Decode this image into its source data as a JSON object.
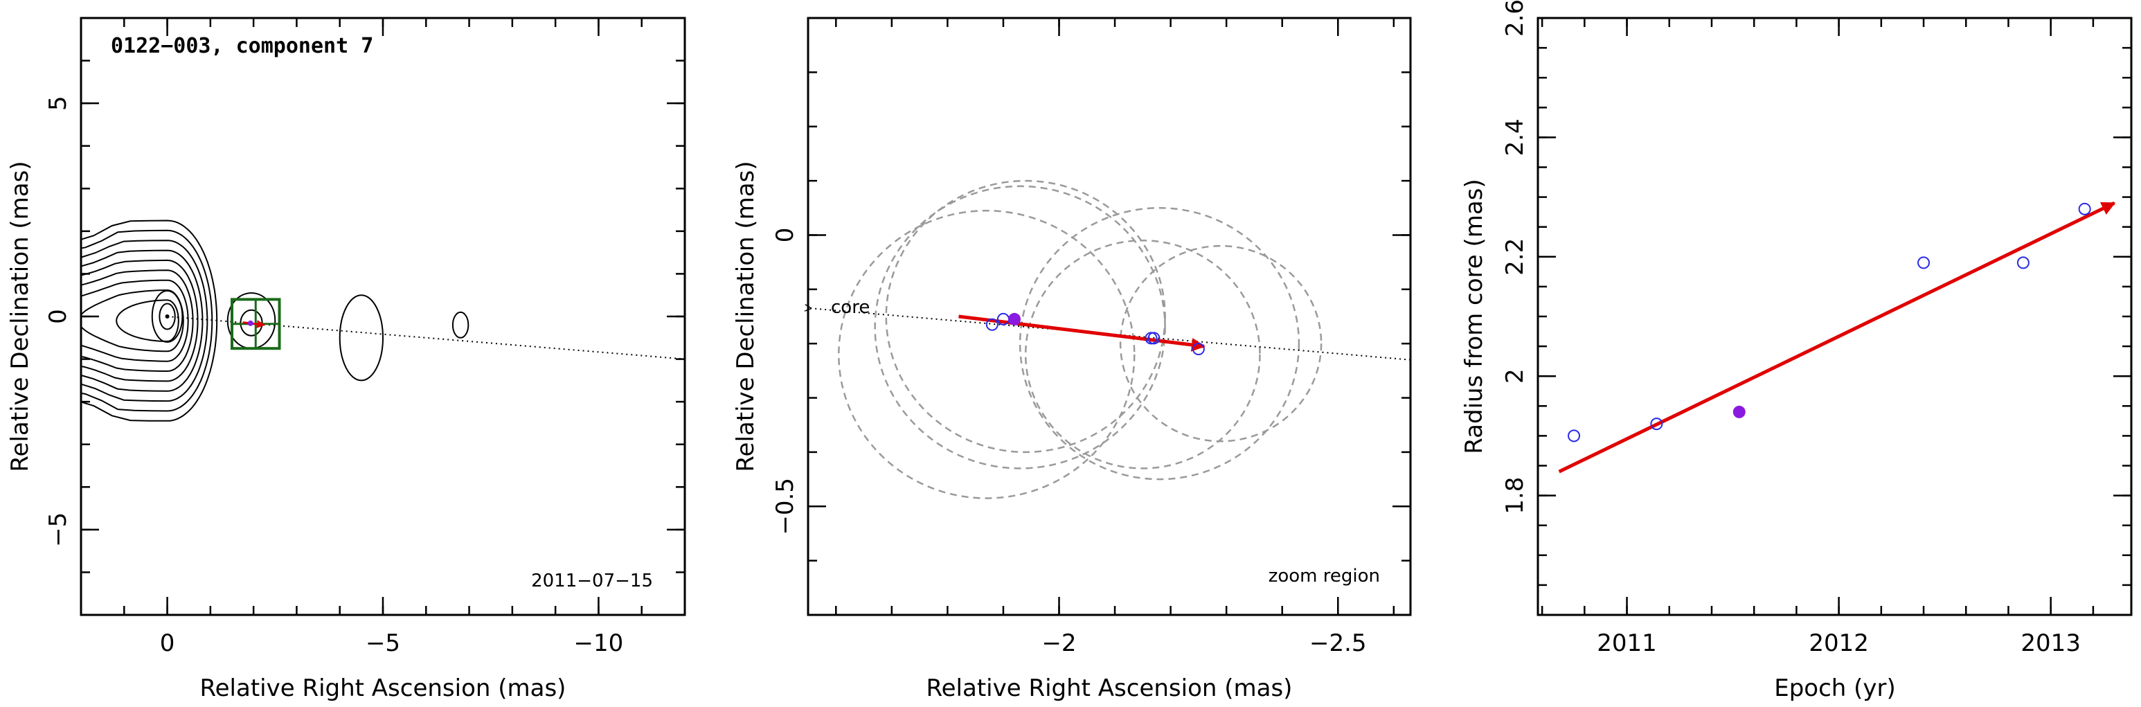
{
  "chart_data": [
    {
      "type": "contour",
      "title": "0122−003, component 7",
      "date_label": "2011−07−15",
      "xlabel": "Relative Right Ascension (mas)",
      "ylabel": "Relative Declination (mas)",
      "xlim": [
        2,
        -12
      ],
      "ylim": [
        -7,
        7
      ],
      "x_ticks": [
        0,
        -5,
        -10
      ],
      "x_tick_labels": [
        "0",
        "−5",
        "−10"
      ],
      "y_ticks": [
        -5,
        0,
        5
      ],
      "y_tick_labels": [
        "−5",
        "0",
        "5"
      ],
      "core_position": [
        0,
        0
      ],
      "component_position": [
        -1.93,
        -0.16
      ],
      "jet_line": {
        "from": [
          0,
          0
        ],
        "to": [
          -12,
          -1.0
        ]
      },
      "zoom_box": {
        "ra": [
          -1.5,
          -2.6
        ],
        "dec": [
          0.4,
          -0.75
        ]
      },
      "colors": {
        "contour": "#000000",
        "box": "#1a6b1a",
        "arrow": "#e00000"
      }
    },
    {
      "type": "scatter",
      "panel_label": "zoom region",
      "core_label": "core",
      "xlabel": "Relative Right Ascension (mas)",
      "ylabel": "Relative Declination (mas)",
      "xlim": [
        -1.55,
        -2.63
      ],
      "ylim": [
        -0.7,
        0.4
      ],
      "x_ticks": [
        -2,
        -2.5
      ],
      "x_tick_labels": [
        "−2",
        "−2.5"
      ],
      "y_ticks": [
        -0.5,
        0
      ],
      "y_tick_labels": [
        "−0.5",
        "0"
      ],
      "points": [
        {
          "ra": -1.88,
          "dec": -0.165,
          "filled": false
        },
        {
          "ra": -1.9,
          "dec": -0.155,
          "filled": false
        },
        {
          "ra": -1.92,
          "dec": -0.155,
          "filled": true
        },
        {
          "ra": -2.165,
          "dec": -0.19,
          "filled": false
        },
        {
          "ra": -2.17,
          "dec": -0.19,
          "filled": false
        },
        {
          "ra": -2.25,
          "dec": -0.21,
          "filled": false
        }
      ],
      "circles": [
        {
          "ra": -1.87,
          "dec": -0.22,
          "r": 0.265
        },
        {
          "ra": -1.93,
          "dec": -0.17,
          "r": 0.26
        },
        {
          "ra": -1.94,
          "dec": -0.15,
          "r": 0.25
        },
        {
          "ra": -2.15,
          "dec": -0.22,
          "r": 0.21
        },
        {
          "ra": -2.18,
          "dec": -0.2,
          "r": 0.25
        },
        {
          "ra": -2.29,
          "dec": -0.2,
          "r": 0.18
        }
      ],
      "jet_line": {
        "from": [
          -1.55,
          -0.135
        ],
        "to": [
          -2.63,
          -0.23
        ]
      },
      "arrow": {
        "from": [
          -1.82,
          -0.15
        ],
        "to": [
          -2.26,
          -0.205
        ]
      },
      "colors": {
        "open": "#2a2ae8",
        "filled": "#8a1ae0",
        "arrow": "#e00000",
        "circle": "#9a9a9a"
      }
    },
    {
      "type": "scatter",
      "xlabel": "Epoch (yr)",
      "ylabel": "Radius from core (mas)",
      "xlim": [
        2010.58,
        2013.38
      ],
      "ylim": [
        1.6,
        2.6
      ],
      "x_ticks": [
        2011,
        2012,
        2013
      ],
      "x_tick_labels": [
        "2011",
        "2012",
        "2013"
      ],
      "y_ticks": [
        1.8,
        2,
        2.2,
        2.4,
        2.6
      ],
      "y_tick_labels": [
        "1.8",
        "2",
        "2.2",
        "2.4",
        "2.6"
      ],
      "points": [
        {
          "x": 2010.75,
          "y": 1.9,
          "filled": false
        },
        {
          "x": 2011.14,
          "y": 1.92,
          "filled": false
        },
        {
          "x": 2011.53,
          "y": 1.94,
          "filled": true
        },
        {
          "x": 2012.4,
          "y": 2.19,
          "filled": false
        },
        {
          "x": 2012.87,
          "y": 2.19,
          "filled": false
        },
        {
          "x": 2013.16,
          "y": 2.28,
          "filled": false
        }
      ],
      "fit_line": {
        "from": [
          2010.68,
          1.84
        ],
        "to": [
          2013.3,
          2.29
        ]
      },
      "colors": {
        "open": "#2a2ae8",
        "filled": "#8a1ae0",
        "fit": "#e00000"
      }
    }
  ]
}
